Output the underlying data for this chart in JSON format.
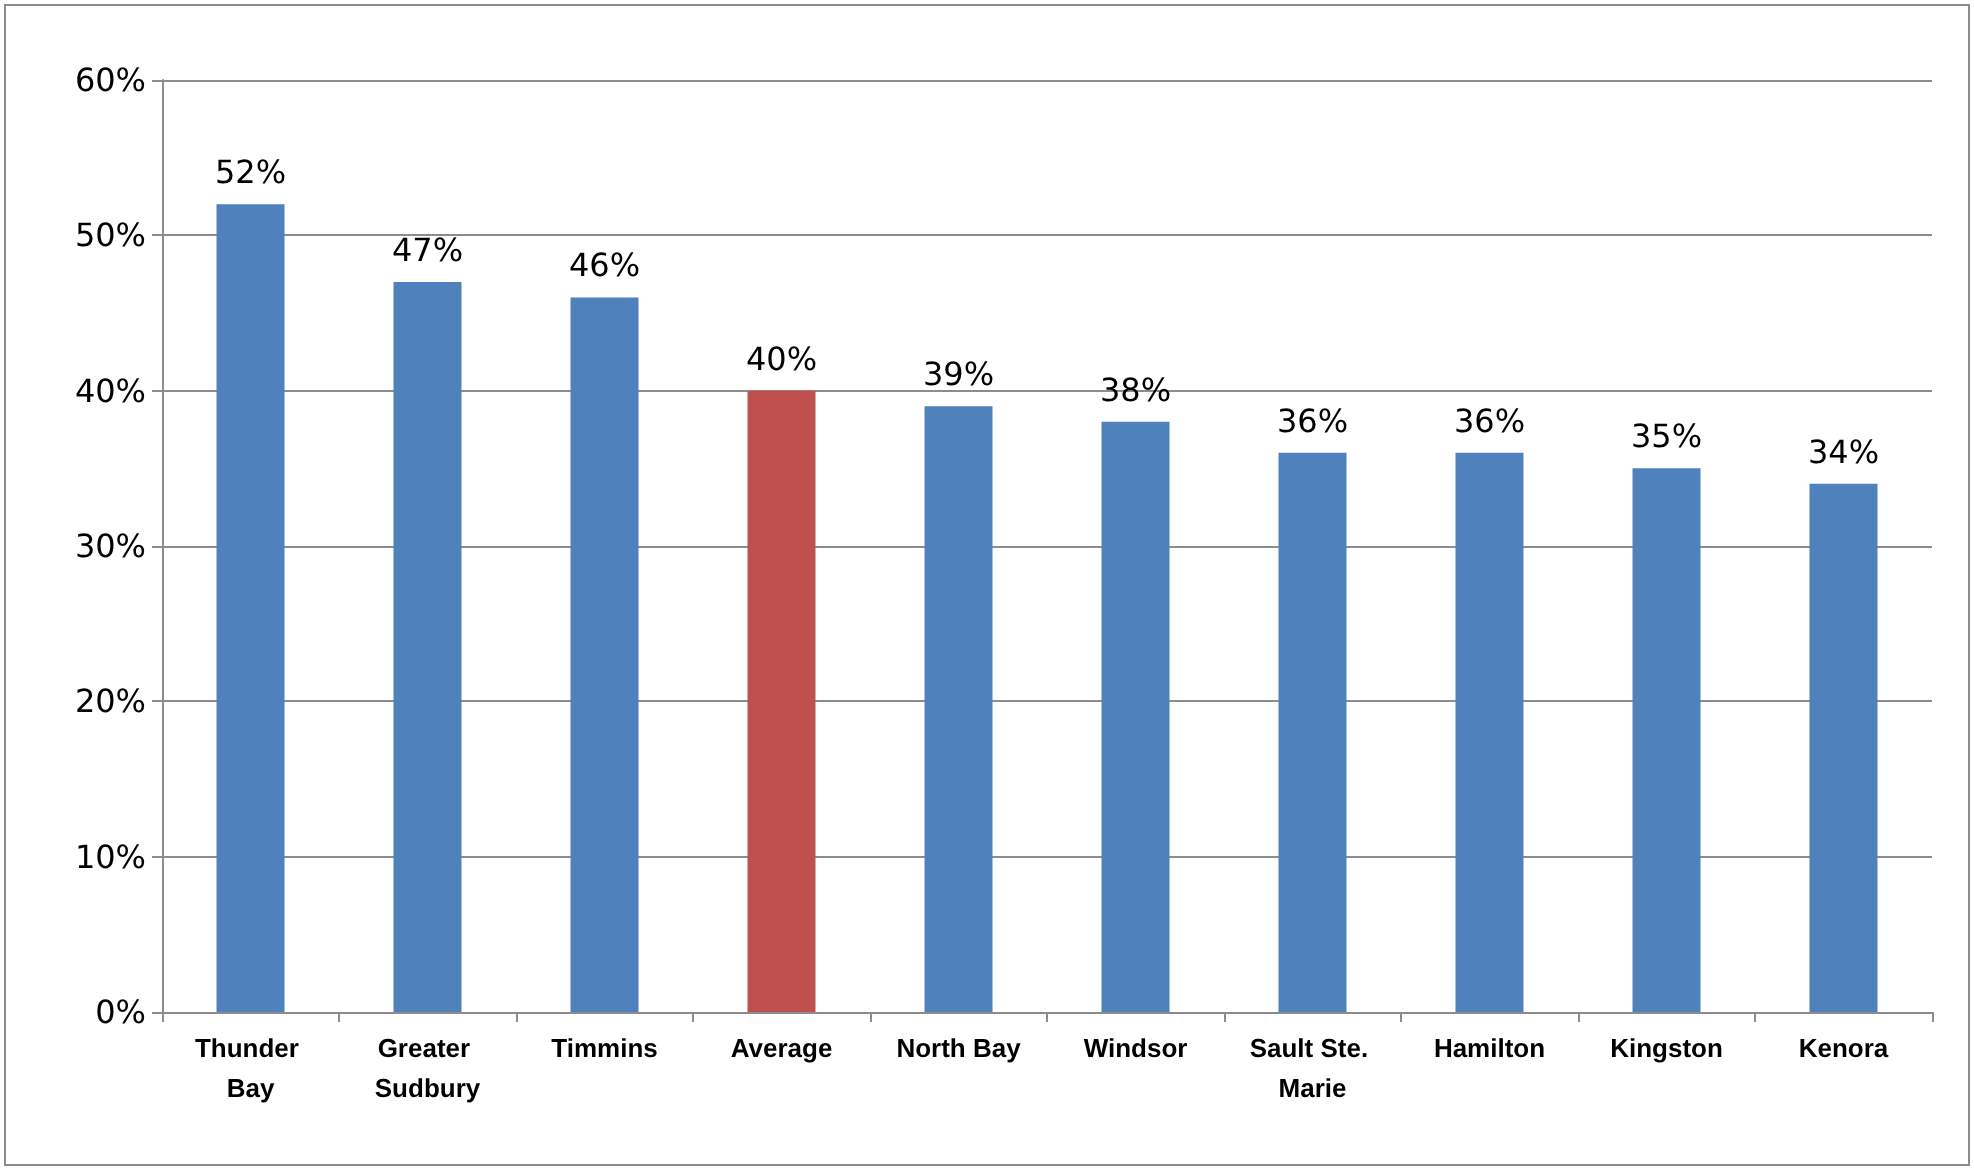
{
  "chart_data": {
    "type": "bar",
    "categories": [
      "Thunder Bay",
      "Greater Sudbury",
      "Timmins",
      "Average",
      "North Bay",
      "Windsor",
      "Sault Ste. Marie",
      "Hamilton",
      "Kingston",
      "Kenora"
    ],
    "values": [
      52,
      47,
      46,
      40,
      39,
      38,
      36,
      36,
      35,
      34
    ],
    "colors": [
      "#4f81bd",
      "#4f81bd",
      "#4f81bd",
      "#c0504d",
      "#4f81bd",
      "#4f81bd",
      "#4f81bd",
      "#4f81bd",
      "#4f81bd",
      "#4f81bd"
    ],
    "value_labels": [
      "52%",
      "47%",
      "46%",
      "40%",
      "39%",
      "38%",
      "36%",
      "36%",
      "35%",
      "34%"
    ],
    "ylim": [
      0,
      60
    ],
    "yticks": [
      {
        "value": 0,
        "label": "0%"
      },
      {
        "value": 10,
        "label": "10%"
      },
      {
        "value": 20,
        "label": "20%"
      },
      {
        "value": 30,
        "label": "30%"
      },
      {
        "value": 40,
        "label": "40%"
      },
      {
        "value": 50,
        "label": "50%"
      },
      {
        "value": 60,
        "label": "60%"
      }
    ],
    "grid": "y"
  }
}
